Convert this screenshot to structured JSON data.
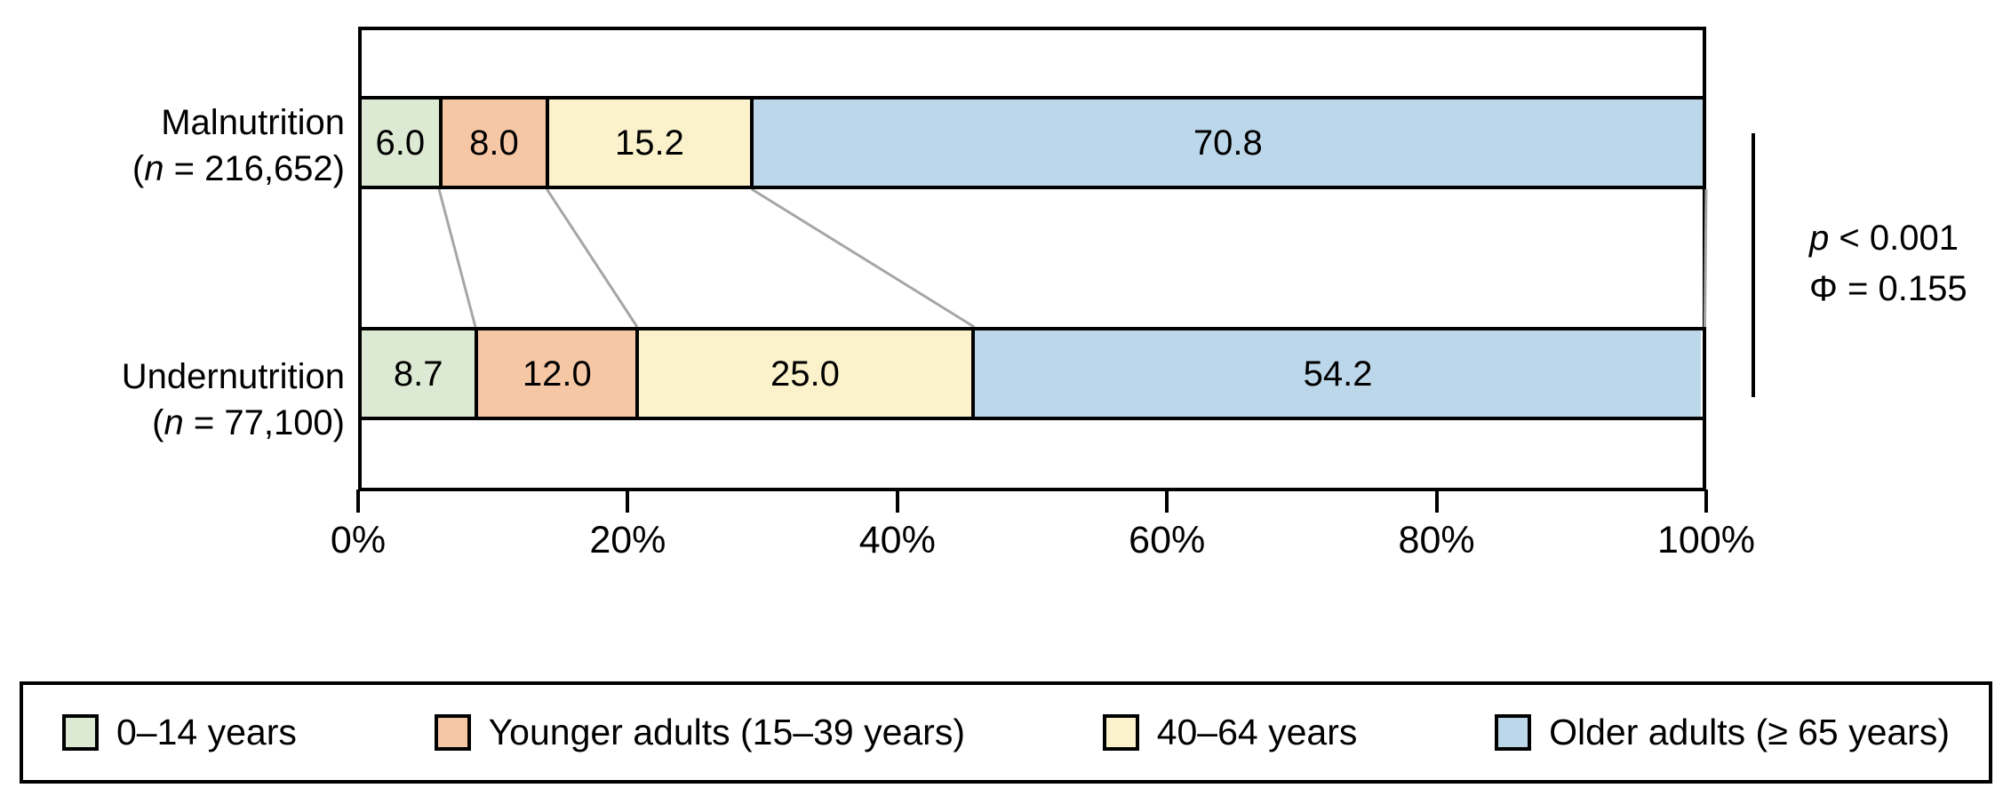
{
  "figure": {
    "rows": [
      {
        "name": "Malnutrition",
        "n_open": "(",
        "n_var": "n",
        "n_rest": " = 216,652)"
      },
      {
        "name": "Undernutrition",
        "n_open": "(",
        "n_var": "n",
        "n_rest": " = 77,100)"
      }
    ],
    "annotation": {
      "p_italic": "p",
      "p_rest": " < 0.001",
      "phi_text": "Φ = 0.155"
    }
  },
  "chart_data": {
    "type": "bar",
    "orientation": "horizontal",
    "stacked": true,
    "categories": [
      "Malnutrition (n = 216,652)",
      "Undernutrition (n = 77,100)"
    ],
    "series": [
      {
        "name": "0–14 years",
        "color": "#dcead3",
        "values": [
          6.0,
          8.7
        ]
      },
      {
        "name": "Younger adults (15–39 years)",
        "color": "#f6c7a4",
        "values": [
          8.0,
          12.0
        ]
      },
      {
        "name": "40–64 years",
        "color": "#fbf2cc",
        "values": [
          15.2,
          25.0
        ]
      },
      {
        "name": "Older adults (≥ 65 years)",
        "color": "#bdd7ea",
        "values": [
          70.8,
          54.2
        ]
      }
    ],
    "title": "",
    "xlabel": "",
    "ylabel": "",
    "xlim": [
      0,
      100
    ],
    "x_ticks": [
      {
        "value": 0,
        "label": "0%"
      },
      {
        "value": 20,
        "label": "20%"
      },
      {
        "value": 40,
        "label": "40%"
      },
      {
        "value": 60,
        "label": "60%"
      },
      {
        "value": 80,
        "label": "80%"
      },
      {
        "value": 100,
        "label": "100%"
      }
    ],
    "annotations": [
      "p < 0.001",
      "Φ = 0.155"
    ],
    "legend_position": "bottom",
    "grid": false
  },
  "colors": {
    "connector_gray": "#a6a6a6",
    "border_black": "#000000",
    "background": "#ffffff"
  }
}
